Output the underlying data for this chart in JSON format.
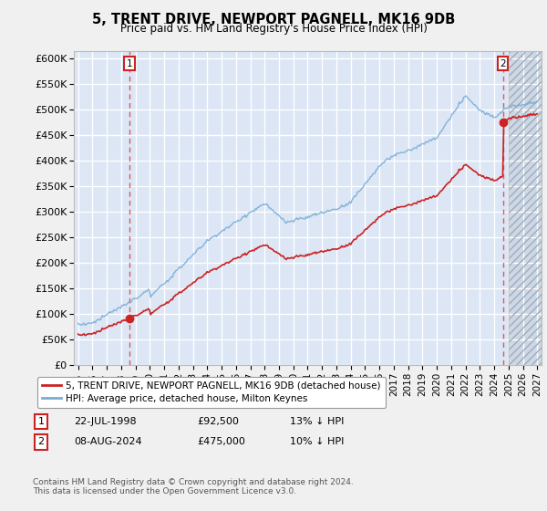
{
  "title": "5, TRENT DRIVE, NEWPORT PAGNELL, MK16 9DB",
  "subtitle": "Price paid vs. HM Land Registry's House Price Index (HPI)",
  "ylabel_ticks": [
    "£0",
    "£50K",
    "£100K",
    "£150K",
    "£200K",
    "£250K",
    "£300K",
    "£350K",
    "£400K",
    "£450K",
    "£500K",
    "£550K",
    "£600K"
  ],
  "ytick_values": [
    0,
    50000,
    100000,
    150000,
    200000,
    250000,
    300000,
    350000,
    400000,
    450000,
    500000,
    550000,
    600000
  ],
  "ylim": [
    0,
    615000
  ],
  "xlim_start": 1994.7,
  "xlim_end": 2027.3,
  "xticks": [
    1995,
    1996,
    1997,
    1998,
    1999,
    2000,
    2001,
    2002,
    2003,
    2004,
    2005,
    2006,
    2007,
    2008,
    2009,
    2010,
    2011,
    2012,
    2013,
    2014,
    2015,
    2016,
    2017,
    2018,
    2019,
    2020,
    2021,
    2022,
    2023,
    2024,
    2025,
    2026,
    2027
  ],
  "hpi_color": "#7aadd4",
  "price_color": "#cc2222",
  "annotation_box_color": "#cc2222",
  "chart_bg_color": "#dce6f5",
  "future_bg_color": "#c8d8ec",
  "grid_color": "#ffffff",
  "fig_bg_color": "#f0f0f0",
  "legend_label_price": "5, TRENT DRIVE, NEWPORT PAGNELL, MK16 9DB (detached house)",
  "legend_label_hpi": "HPI: Average price, detached house, Milton Keynes",
  "note1_date": "22-JUL-1998",
  "note1_price": "£92,500",
  "note1_hpi": "13% ↓ HPI",
  "note2_date": "08-AUG-2024",
  "note2_price": "£475,000",
  "note2_hpi": "10% ↓ HPI",
  "footer": "Contains HM Land Registry data © Crown copyright and database right 2024.\nThis data is licensed under the Open Government Licence v3.0.",
  "sale1_year": 1998.56,
  "sale1_price": 92500,
  "sale2_year": 2024.6,
  "sale2_price": 475000,
  "future_start": 2025.0
}
